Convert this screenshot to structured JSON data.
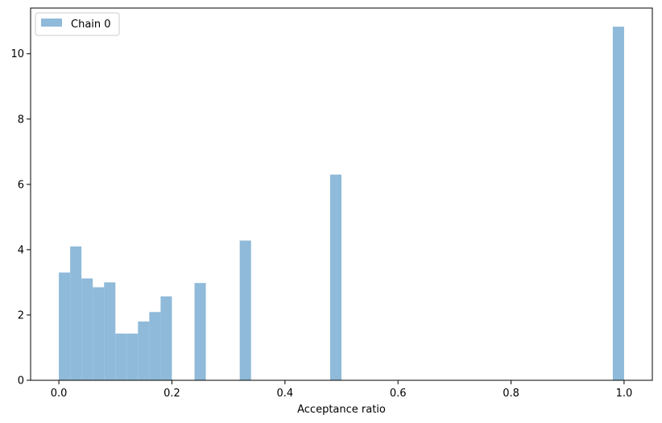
{
  "chart_data": {
    "type": "bar",
    "xlabel": "Acceptance ratio",
    "ylabel": "",
    "xlim": [
      -0.05,
      1.05
    ],
    "ylim": [
      0,
      11.4
    ],
    "xticks": [
      "0.0",
      "0.2",
      "0.4",
      "0.6",
      "0.8",
      "1.0"
    ],
    "yticks": [
      "0",
      "2",
      "4",
      "6",
      "8",
      "10"
    ],
    "grid": false,
    "legend_position": "top-left",
    "series": [
      {
        "name": "Chain 0",
        "color": "#8fbad9",
        "bin_width": 0.02,
        "bins": [
          {
            "x0": 0.0,
            "value": 3.3
          },
          {
            "x0": 0.02,
            "value": 4.1
          },
          {
            "x0": 0.04,
            "value": 3.12
          },
          {
            "x0": 0.06,
            "value": 2.85
          },
          {
            "x0": 0.08,
            "value": 3.0
          },
          {
            "x0": 0.1,
            "value": 1.43
          },
          {
            "x0": 0.12,
            "value": 1.43
          },
          {
            "x0": 0.14,
            "value": 1.8
          },
          {
            "x0": 0.16,
            "value": 2.09
          },
          {
            "x0": 0.18,
            "value": 2.57
          },
          {
            "x0": 0.24,
            "value": 2.98
          },
          {
            "x0": 0.32,
            "value": 4.28
          },
          {
            "x0": 0.48,
            "value": 6.3
          },
          {
            "x0": 0.98,
            "value": 10.83
          }
        ]
      }
    ]
  }
}
